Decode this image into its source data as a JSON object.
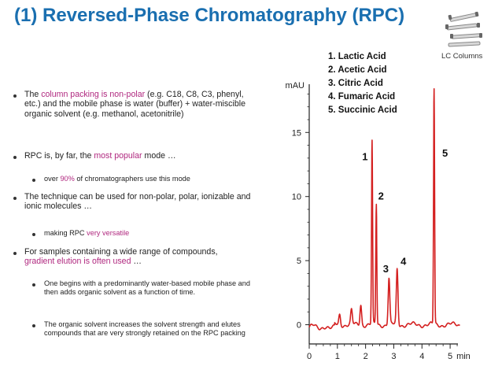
{
  "title": "(1) Reversed-Phase Chromatography (RPC)",
  "lc_columns_label": "LC Columns",
  "icons": {
    "lc_columns": "lc-columns-icon"
  },
  "colors": {
    "title": "#1a6fb0",
    "highlight": "#b0287f",
    "trace": "#d42020"
  },
  "bullets": {
    "b1_pre": "The ",
    "b1_hl": "column packing is non-polar",
    "b1_post": " (e.g. C18, C8, C3, phenyl, etc.) and the mobile phase is water (buffer) + water-miscible organic solvent (e.g. methanol, acetonitrile)",
    "b2_pre": "RPC is, by far, the ",
    "b2_hl": "most popular",
    "b2_post": " mode …",
    "b2a_pre": "over ",
    "b2a_hl": "90%",
    "b2a_post": " of chromatographers use this mode",
    "b3": "The technique can be used for non-polar, polar, ionizable and ionic molecules …",
    "b3a_pre": "making RPC ",
    "b3a_hl": "very versatile",
    "b4_pre": "For samples containing a wide range of compounds, ",
    "b4_hl": "gradient elution is often used",
    "b4_post": " …",
    "b4a": "One begins with a predominantly water-based mobile phase and then adds organic solvent as a function of time.",
    "b4b": "The organic solvent increases the solvent strength and elutes compounds that are very strongly retained on the RPC packing"
  },
  "legend": [
    "1. Lactic Acid",
    "2. Acetic Acid",
    "3. Citric Acid",
    "4. Fumaric Acid",
    "5. Succinic Acid"
  ],
  "chart_data": {
    "type": "line",
    "xlabel": "min",
    "ylabel": "mAU",
    "xlim": [
      0,
      5.5
    ],
    "ylim": [
      -1.5,
      19.5
    ],
    "x_ticks": [
      "0",
      "1",
      "2",
      "3",
      "4",
      "5"
    ],
    "x_tick_values": [
      0,
      1,
      2,
      3,
      4,
      5
    ],
    "x_unit_label": "min",
    "y_ticks": [
      "0",
      "5",
      "10",
      "15"
    ],
    "y_tick_values": [
      0,
      5,
      10,
      15
    ],
    "baseline": 0,
    "peaks": [
      {
        "label": "",
        "t": 1.08,
        "h": 0.8
      },
      {
        "label": "",
        "t": 1.5,
        "h": 1.1
      },
      {
        "label": "",
        "t": 1.83,
        "h": 1.6
      },
      {
        "label": "1",
        "t": 2.23,
        "h": 14.3
      },
      {
        "label": "2",
        "t": 2.38,
        "h": 9.4
      },
      {
        "label": "3",
        "t": 2.83,
        "h": 3.6
      },
      {
        "label": "4",
        "t": 3.12,
        "h": 4.3
      },
      {
        "label": "5",
        "t": 4.43,
        "h": 18.4
      }
    ],
    "series": [
      {
        "name": "",
        "color": "#d42020"
      }
    ],
    "grid": false
  }
}
